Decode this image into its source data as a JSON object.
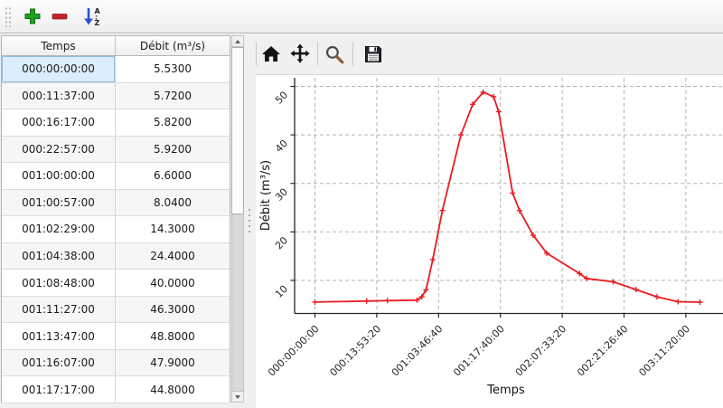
{
  "main_toolbar": {
    "buttons": [
      {
        "label": "add-row",
        "icon": "plus-icon",
        "color": "#1f9e1f"
      },
      {
        "label": "remove-row",
        "icon": "minus-icon",
        "color": "#c3252a"
      },
      {
        "label": "sort",
        "icon": "sort-az-icon",
        "color": "#2d52cc",
        "letters": [
          "A",
          "Z"
        ]
      }
    ]
  },
  "table": {
    "columns": [
      "Temps",
      "Débit (m³/s)"
    ],
    "rows": [
      [
        "000:00:00:00",
        "5.5300"
      ],
      [
        "000:11:37:00",
        "5.7200"
      ],
      [
        "000:16:17:00",
        "5.8200"
      ],
      [
        "000:22:57:00",
        "5.9200"
      ],
      [
        "001:00:00:00",
        "6.6000"
      ],
      [
        "001:00:57:00",
        "8.0400"
      ],
      [
        "001:02:29:00",
        "14.3000"
      ],
      [
        "001:04:38:00",
        "24.4000"
      ],
      [
        "001:08:48:00",
        "40.0000"
      ],
      [
        "001:11:27:00",
        "46.3000"
      ],
      [
        "001:13:47:00",
        "48.8000"
      ],
      [
        "001:16:07:00",
        "47.9000"
      ],
      [
        "001:17:17:00",
        "44.8000"
      ]
    ],
    "selected": {
      "row": 0,
      "col": 0
    }
  },
  "chart_toolbar": {
    "icons": [
      "home-icon",
      "pan-icon",
      "zoom-icon",
      "save-icon"
    ]
  },
  "chart_data": {
    "type": "line",
    "title": "",
    "xlabel": "Temps",
    "ylabel": "Débit (m³/s)",
    "x_tick_labels": [
      "000:00:00:00",
      "000:13:53:20",
      "001:03:46:40",
      "001:17:40:00",
      "002:07:33:20",
      "002:21:26:40",
      "003:11:20:00"
    ],
    "x_tick_seconds": [
      0,
      50000,
      100000,
      150000,
      200000,
      250000,
      300000
    ],
    "y_ticks": [
      10,
      20,
      30,
      40,
      50
    ],
    "xlim_seconds": [
      -16400,
      330000
    ],
    "ylim": [
      3.3,
      52.5
    ],
    "grid": true,
    "legend": false,
    "line_color": "#ec1b1f",
    "marker": "plus",
    "series": [
      {
        "name": "Débit (m³/s)",
        "points": [
          [
            "000:00:00:00",
            5.53
          ],
          [
            "000:11:37:00",
            5.72
          ],
          [
            "000:16:17:00",
            5.82
          ],
          [
            "000:22:57:00",
            5.92
          ],
          [
            "001:00:00:00",
            6.6
          ],
          [
            "001:00:57:00",
            8.04
          ],
          [
            "001:02:29:00",
            14.3
          ],
          [
            "001:04:38:00",
            24.4
          ],
          [
            "001:08:48:00",
            40.0
          ],
          [
            "001:11:27:00",
            46.3
          ],
          [
            "001:13:47:00",
            48.8
          ],
          [
            "001:16:07:00",
            47.9
          ],
          [
            "001:17:17:00",
            44.8
          ],
          [
            "001:20:25:00",
            28.0
          ],
          [
            "001:21:58:00",
            24.4
          ],
          [
            "002:01:02:00",
            19.3
          ],
          [
            "002:04:05:00",
            15.6
          ],
          [
            "002:11:27:00",
            11.4
          ],
          [
            "002:13:00:00",
            10.4
          ],
          [
            "002:19:00:00",
            9.7
          ],
          [
            "003:00:07:00",
            8.1
          ],
          [
            "003:04:50:00",
            6.6
          ],
          [
            "003:09:35:00",
            5.6
          ],
          [
            "003:14:30:00",
            5.5
          ]
        ]
      }
    ]
  }
}
